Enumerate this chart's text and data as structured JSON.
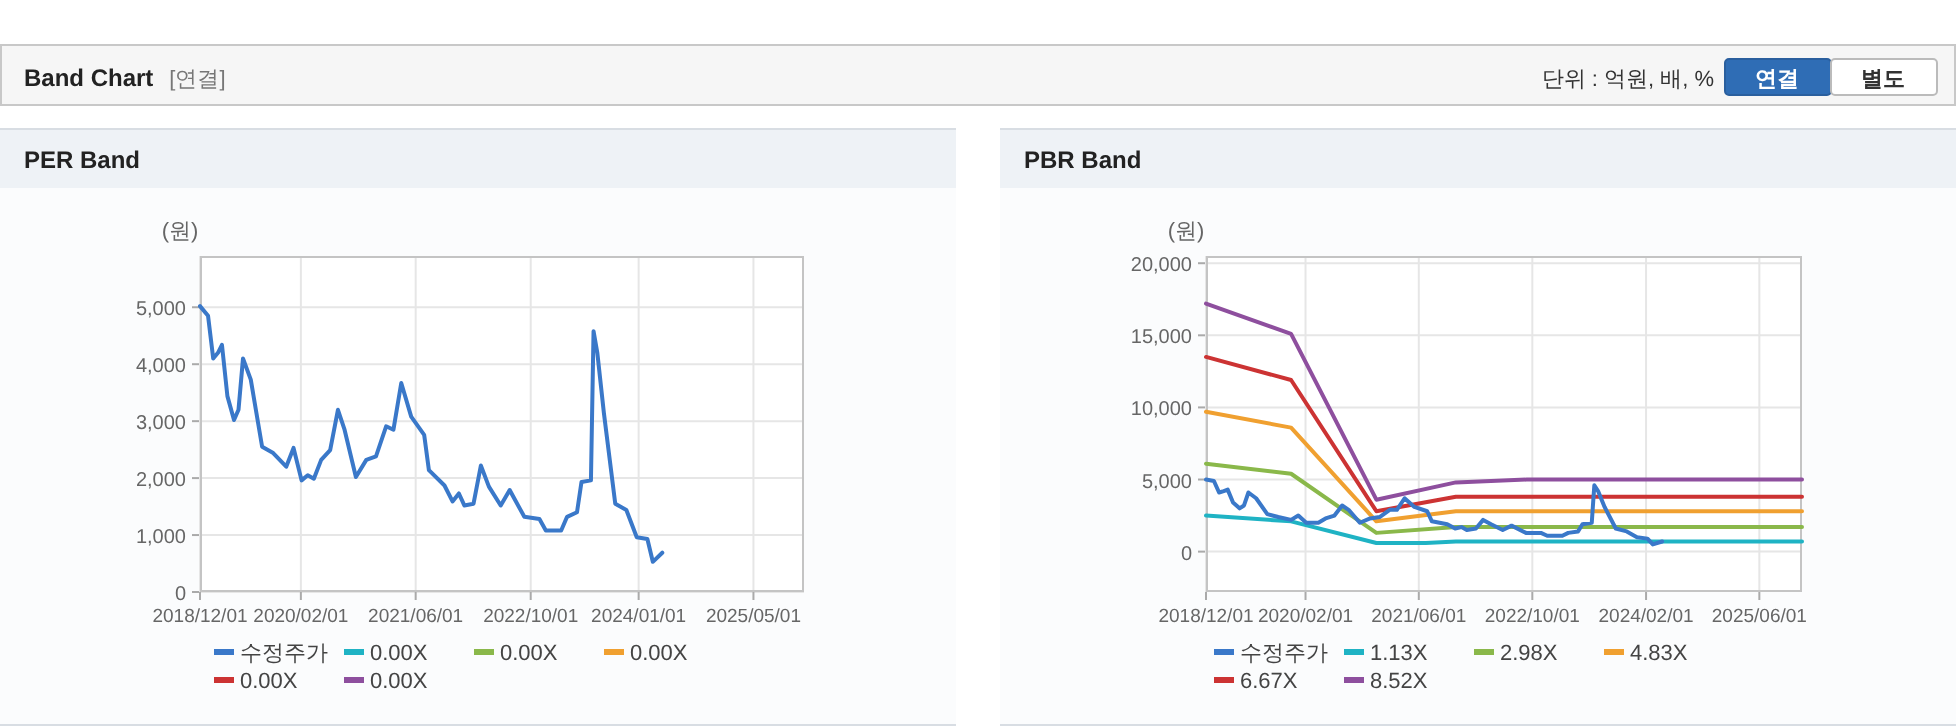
{
  "chart_data": [
    {
      "type": "other",
      "title": "Band Chart",
      "subtitle": "[연결]",
      "annotations": [
        "단위 : 억원, 배, %",
        "연결",
        "별도"
      ]
    },
    {
      "type": "line",
      "title": "PER Band",
      "ylabel": "(원)",
      "xlim": [
        "2018-12-01",
        "2025-12-01"
      ],
      "ylim": [
        0,
        5900
      ],
      "xticks": [
        {
          "value": "2018-12-01",
          "label": "2018/12/01"
        },
        {
          "value": "2020-02-01",
          "label": "2020/02/01"
        },
        {
          "value": "2021-06-01",
          "label": "2021/06/01"
        },
        {
          "value": "2022-10-01",
          "label": "2022/10/01"
        },
        {
          "value": "2024-01-01",
          "label": "2024/01/01"
        },
        {
          "value": "2025-05-01",
          "label": "2025/05/01"
        }
      ],
      "yticks": [
        {
          "value": 0,
          "label": "0"
        },
        {
          "value": 1000,
          "label": "1,000"
        },
        {
          "value": 2000,
          "label": "2,000"
        },
        {
          "value": 3000,
          "label": "3,000"
        },
        {
          "value": 4000,
          "label": "4,000"
        },
        {
          "value": 5000,
          "label": "5,000"
        }
      ],
      "grid": true,
      "legend": "bottom",
      "series": [
        {
          "name": "수정주가",
          "color": "#3a78c9",
          "x": [
            "2018-12-01",
            "2019-01-04",
            "2019-01-26",
            "2019-02-15",
            "2019-03-04",
            "2019-03-27",
            "2019-04-24",
            "2019-05-13",
            "2019-06-01",
            "2019-07-04",
            "2019-08-21",
            "2019-10-07",
            "2019-12-01",
            "2020-01-01",
            "2020-02-04",
            "2020-03-01",
            "2020-03-27",
            "2020-04-27",
            "2020-06-04",
            "2020-07-07",
            "2020-08-04",
            "2020-09-21",
            "2020-11-04",
            "2020-12-15",
            "2021-01-27",
            "2021-02-27",
            "2021-04-01",
            "2021-05-13",
            "2021-07-07",
            "2021-07-27",
            "2021-10-01",
            "2021-11-04",
            "2021-12-01",
            "2021-12-24",
            "2022-02-01",
            "2022-03-04",
            "2022-04-07",
            "2022-05-27",
            "2022-07-04",
            "2022-09-04",
            "2022-11-07",
            "2022-12-04",
            "2023-02-07",
            "2023-03-04",
            "2023-04-15",
            "2023-05-04",
            "2023-06-13",
            "2023-06-24",
            "2023-07-10",
            "2023-08-07",
            "2023-09-24",
            "2023-11-10",
            "2023-12-24",
            "2024-02-07",
            "2024-03-01",
            "2024-04-10"
          ],
          "values": [
            5020,
            4850,
            4100,
            4200,
            4340,
            3440,
            3020,
            3200,
            4100,
            3730,
            2550,
            2440,
            2200,
            2530,
            1960,
            2050,
            1990,
            2320,
            2490,
            3200,
            2850,
            2020,
            2320,
            2380,
            2910,
            2850,
            3670,
            3080,
            2760,
            2140,
            1870,
            1590,
            1730,
            1520,
            1550,
            2220,
            1850,
            1520,
            1790,
            1320,
            1280,
            1080,
            1080,
            1320,
            1400,
            1930,
            1960,
            4580,
            4200,
            3140,
            1550,
            1440,
            960,
            930,
            530,
            690
          ]
        },
        {
          "name": "0.00X",
          "color": "#1fb3c4"
        },
        {
          "name": "0.00X",
          "color": "#8ab84a"
        },
        {
          "name": "0.00X",
          "color": "#f0a030"
        },
        {
          "name": "0.00X",
          "color": "#cc3333"
        },
        {
          "name": "0.00X",
          "color": "#8e4f9e"
        }
      ]
    },
    {
      "type": "line",
      "title": "PBR Band",
      "ylabel": "(원)",
      "xlim": [
        "2018-12-01",
        "2025-12-01"
      ],
      "ylim": [
        -2800,
        20500
      ],
      "xticks": [
        {
          "value": "2018-12-01",
          "label": "2018/12/01"
        },
        {
          "value": "2020-02-01",
          "label": "2020/02/01"
        },
        {
          "value": "2021-06-01",
          "label": "2021/06/01"
        },
        {
          "value": "2022-10-01",
          "label": "2022/10/01"
        },
        {
          "value": "2024-02-01",
          "label": "2024/02/01"
        },
        {
          "value": "2025-06-01",
          "label": "2025/06/01"
        }
      ],
      "yticks": [
        {
          "value": 0,
          "label": "0"
        },
        {
          "value": 5000,
          "label": "5,000"
        },
        {
          "value": 10000,
          "label": "10,000"
        },
        {
          "value": 15000,
          "label": "15,000"
        },
        {
          "value": 20000,
          "label": "20,000"
        }
      ],
      "grid": true,
      "legend": "bottom",
      "series": [
        {
          "name": "수정주가",
          "color": "#3a78c9",
          "x": [
            "2018-12-01",
            "2019-01-04",
            "2019-01-26",
            "2019-02-15",
            "2019-03-04",
            "2019-03-27",
            "2019-04-24",
            "2019-05-13",
            "2019-06-01",
            "2019-07-04",
            "2019-08-21",
            "2019-10-07",
            "2019-12-01",
            "2020-01-01",
            "2020-02-04",
            "2020-03-01",
            "2020-03-27",
            "2020-04-27",
            "2020-06-04",
            "2020-07-07",
            "2020-08-04",
            "2020-09-21",
            "2020-11-04",
            "2020-12-15",
            "2021-01-27",
            "2021-02-27",
            "2021-04-01",
            "2021-05-13",
            "2021-07-07",
            "2021-07-27",
            "2021-10-01",
            "2021-11-04",
            "2021-12-01",
            "2021-12-24",
            "2022-02-01",
            "2022-03-04",
            "2022-04-07",
            "2022-05-27",
            "2022-07-04",
            "2022-09-04",
            "2022-11-07",
            "2022-12-04",
            "2023-02-07",
            "2023-03-04",
            "2023-04-15",
            "2023-05-04",
            "2023-06-13",
            "2023-06-24",
            "2023-07-10",
            "2023-08-07",
            "2023-09-24",
            "2023-11-10",
            "2023-12-24",
            "2024-02-07",
            "2024-03-01",
            "2024-04-10"
          ],
          "values": [
            5000,
            4900,
            4100,
            4200,
            4300,
            3400,
            3000,
            3200,
            4100,
            3700,
            2600,
            2400,
            2200,
            2500,
            2000,
            2000,
            2000,
            2300,
            2500,
            3200,
            2900,
            2000,
            2300,
            2400,
            2900,
            2900,
            3700,
            3100,
            2800,
            2100,
            1900,
            1600,
            1700,
            1500,
            1600,
            2200,
            1900,
            1500,
            1800,
            1300,
            1300,
            1100,
            1100,
            1300,
            1400,
            1900,
            2000,
            4600,
            4200,
            3100,
            1600,
            1400,
            1000,
            900,
            500,
            700
          ]
        },
        {
          "name": "1.13X",
          "color": "#1fb3c4",
          "x": [
            "2018-12-01",
            "2019-12-01",
            "2020-12-01",
            "2021-07-01",
            "2021-11-07",
            "2025-12-01"
          ],
          "values": [
            2500,
            2100,
            600,
            600,
            700,
            700
          ]
        },
        {
          "name": "2.98X",
          "color": "#8ab84a",
          "x": [
            "2018-12-01",
            "2019-12-01",
            "2020-12-01",
            "2021-11-07",
            "2025-12-01"
          ],
          "values": [
            6100,
            5400,
            1300,
            1700,
            1700
          ]
        },
        {
          "name": "4.83X",
          "color": "#f0a030",
          "x": [
            "2018-12-01",
            "2019-12-01",
            "2020-12-01",
            "2021-11-07",
            "2025-12-01"
          ],
          "values": [
            9700,
            8600,
            2100,
            2800,
            2800
          ]
        },
        {
          "name": "6.67X",
          "color": "#cc3333",
          "x": [
            "2018-12-01",
            "2019-12-01",
            "2020-12-01",
            "2021-11-07",
            "2025-12-01"
          ],
          "values": [
            13500,
            11900,
            2800,
            3800,
            3800
          ]
        },
        {
          "name": "8.52X",
          "color": "#8e4f9e",
          "x": [
            "2018-12-01",
            "2019-12-01",
            "2020-12-01",
            "2021-11-07",
            "2022-09-07",
            "2025-12-01"
          ],
          "values": [
            17200,
            15100,
            3600,
            4800,
            5000,
            5000
          ]
        }
      ]
    }
  ]
}
